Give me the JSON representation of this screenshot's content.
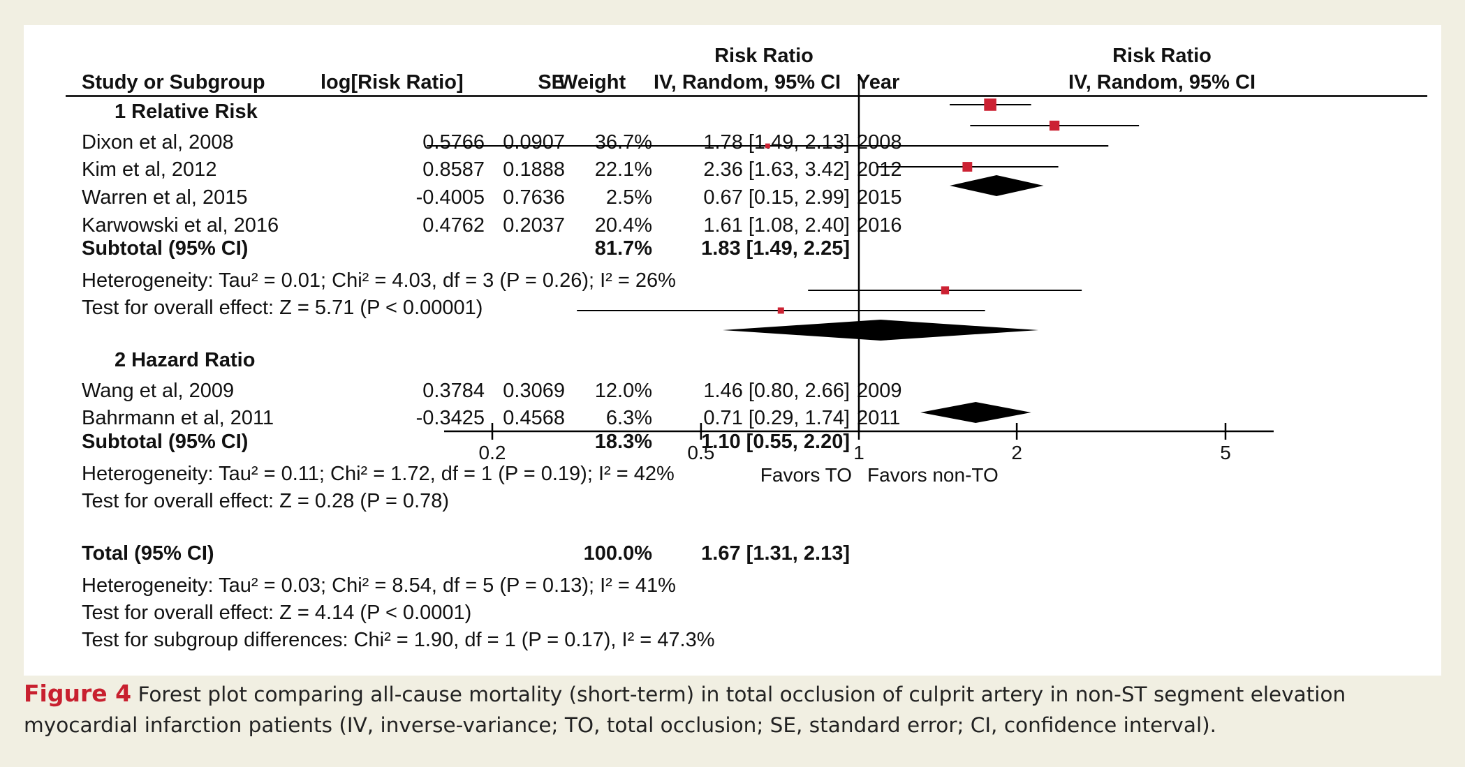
{
  "headers": {
    "study": "Study or Subgroup",
    "logrr": "log[Risk Ratio]",
    "se": "SE",
    "weight": "Weight",
    "rr_top": "Risk Ratio",
    "rr_bottom": "IV, Random, 95% CI",
    "year": "Year",
    "plot_top": "Risk Ratio",
    "plot_bottom": "IV, Random, 95% CI"
  },
  "groups": [
    {
      "title": "1 Relative Risk",
      "studies": [
        {
          "name": "Dixon et al, 2008",
          "logrr": "0.5766",
          "se": "0.0907",
          "weight": "36.7%",
          "ci": "1.78 [1.49, 2.13]",
          "year": "2008"
        },
        {
          "name": "Kim et al, 2012",
          "logrr": "0.8587",
          "se": "0.1888",
          "weight": "22.1%",
          "ci": "2.36 [1.63, 3.42]",
          "year": "2012"
        },
        {
          "name": "Warren et al, 2015",
          "logrr": "-0.4005",
          "se": "0.7636",
          "weight": "2.5%",
          "ci": "0.67 [0.15, 2.99]",
          "year": "2015"
        },
        {
          "name": "Karwowski et al, 2016",
          "logrr": "0.4762",
          "se": "0.2037",
          "weight": "20.4%",
          "ci": "1.61 [1.08, 2.40]",
          "year": "2016"
        }
      ],
      "subtotal": {
        "label": "Subtotal (95% CI)",
        "weight": "81.7%",
        "ci": "1.83 [1.49, 2.25]"
      },
      "heterogeneity": "Heterogeneity: Tau² = 0.01; Chi² = 4.03, df = 3 (P = 0.26); I² = 26%",
      "overall": "Test for overall effect: Z = 5.71 (P < 0.00001)"
    },
    {
      "title": "2 Hazard Ratio",
      "studies": [
        {
          "name": "Wang et al, 2009",
          "logrr": "0.3784",
          "se": "0.3069",
          "weight": "12.0%",
          "ci": "1.46 [0.80, 2.66]",
          "year": "2009"
        },
        {
          "name": "Bahrmann et al, 2011",
          "logrr": "-0.3425",
          "se": "0.4568",
          "weight": "6.3%",
          "ci": "0.71 [0.29, 1.74]",
          "year": "2011"
        }
      ],
      "subtotal": {
        "label": "Subtotal (95% CI)",
        "weight": "18.3%",
        "ci": "1.10 [0.55, 2.20]"
      },
      "heterogeneity": "Heterogeneity: Tau² = 0.11; Chi² = 1.72, df = 1 (P = 0.19); I² = 42%",
      "overall": "Test for overall effect: Z = 0.28 (P = 0.78)"
    }
  ],
  "total": {
    "label": "Total (95% CI)",
    "weight": "100.0%",
    "ci": "1.67 [1.31, 2.13]",
    "heterogeneity": "Heterogeneity: Tau² = 0.03; Chi² = 8.54, df = 5 (P = 0.13); I² = 41%",
    "overall": "Test for overall effect: Z = 4.14 (P < 0.0001)",
    "subgroup": "Test for subgroup differences: Chi² = 1.90, df = 1 (P = 0.17), I² = 47.3%"
  },
  "caption": {
    "figure_label": "Figure 4",
    "text": "Forest plot comparing all-cause mortality (short-term) in total occlusion of culprit artery in non-ST segment elevation myocardial infarction patients (IV, inverse-variance; TO, total occlusion; SE, standard error; CI, confidence interval)."
  },
  "colors": {
    "study_marker": "#cc2233",
    "diamond": "#000000",
    "figure_label": "#c8202f",
    "background": "#f1efe2"
  },
  "chart_data": {
    "type": "forest",
    "scale": "log",
    "xlim": [
      0.2,
      5
    ],
    "x_ticks": [
      "0.2",
      "0.5",
      "1",
      "2",
      "5"
    ],
    "null_line": 1,
    "favors_left": "Favors TO",
    "favors_right": "Favors non-TO",
    "studies": [
      {
        "name": "Dixon et al, 2008",
        "rr": 1.78,
        "lo": 1.49,
        "hi": 2.13,
        "weight": 36.7
      },
      {
        "name": "Kim et al, 2012",
        "rr": 2.36,
        "lo": 1.63,
        "hi": 3.42,
        "weight": 22.1
      },
      {
        "name": "Warren et al, 2015",
        "rr": 0.67,
        "lo": 0.15,
        "hi": 2.99,
        "weight": 2.5
      },
      {
        "name": "Karwowski et al, 2016",
        "rr": 1.61,
        "lo": 1.08,
        "hi": 2.4,
        "weight": 20.4
      },
      {
        "name": "Wang et al, 2009",
        "rr": 1.46,
        "lo": 0.8,
        "hi": 2.66,
        "weight": 12.0
      },
      {
        "name": "Bahrmann et al, 2011",
        "rr": 0.71,
        "lo": 0.29,
        "hi": 1.74,
        "weight": 6.3
      }
    ],
    "diamonds": [
      {
        "name": "Subtotal 1 Relative Risk",
        "rr": 1.83,
        "lo": 1.49,
        "hi": 2.25
      },
      {
        "name": "Subtotal 2 Hazard Ratio",
        "rr": 1.1,
        "lo": 0.55,
        "hi": 2.2
      },
      {
        "name": "Total",
        "rr": 1.67,
        "lo": 1.31,
        "hi": 2.13
      }
    ]
  }
}
